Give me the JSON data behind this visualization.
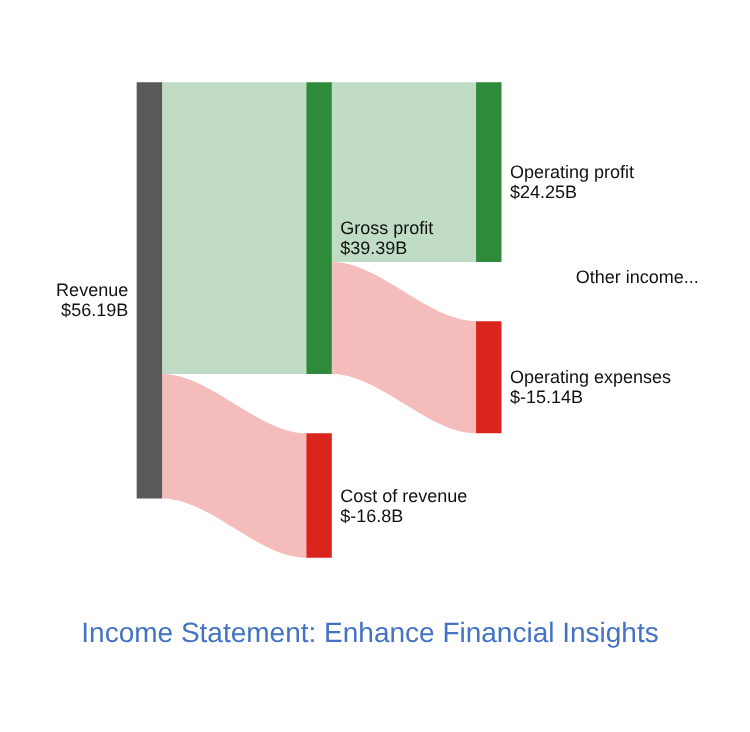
{
  "chart_data": {
    "type": "other",
    "title": "Income Statement: Enhance Financial Insights",
    "categories": [
      "Revenue",
      "Gross profit",
      "Cost of revenue",
      "Operating profit",
      "Operating expenses"
    ],
    "values": [
      56.19,
      39.39,
      -16.8,
      24.25,
      -15.14
    ],
    "value_labels": [
      "$56.19B",
      "$39.39B",
      "$-16.8B",
      "$24.25B",
      "$-15.14B"
    ],
    "colors": [
      "#595959",
      "#2e8b3a",
      "#d9251d",
      "#2e8b3a",
      "#d9251d"
    ],
    "annotations": [
      "Other income..."
    ]
  }
}
